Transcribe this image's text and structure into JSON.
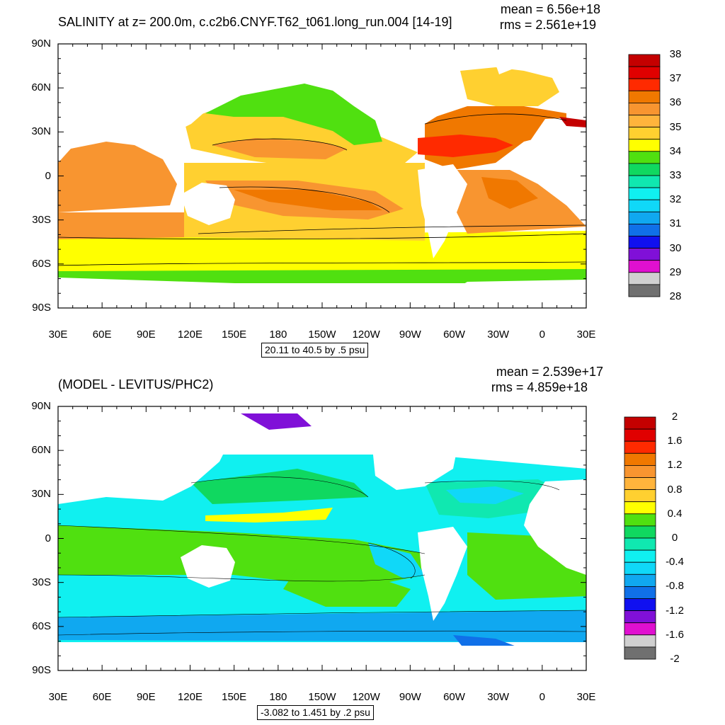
{
  "top": {
    "title": "SALINITY at z= 200.0m, c.c2b6.CNYF.T62_t061.long_run.004 [14-19]",
    "stat_mean": "mean = 6.56e+18",
    "stat_rms": "rms = 2.561e+19",
    "range_note": "20.11 to 40.5 by .5 psu",
    "x_ticks": [
      "30E",
      "60E",
      "90E",
      "120E",
      "150E",
      "180",
      "150W",
      "120W",
      "90W",
      "60W",
      "30W",
      "0",
      "30E"
    ],
    "y_ticks": [
      "90N",
      "60N",
      "30N",
      "0",
      "30S",
      "60S",
      "90S"
    ],
    "legend_labels": [
      "38",
      "37",
      "36",
      "35",
      "34",
      "33",
      "32",
      "31",
      "30",
      "29",
      "28"
    ],
    "legend_colors": [
      "#c40000",
      "#e00000",
      "#ff2a00",
      "#f07800",
      "#f89530",
      "#ffb43c",
      "#ffd030",
      "#ffff00",
      "#50e010",
      "#10d860",
      "#10e8b0",
      "#10f0f0",
      "#10d8f8",
      "#10a8f0",
      "#1070e8",
      "#1010f0",
      "#8010d8",
      "#e010d0",
      "#d0d0d0",
      "#707070"
    ]
  },
  "bottom": {
    "title": "(MODEL - LEVITUS/PHC2)",
    "stat_mean": "mean = 2.539e+17",
    "stat_rms": "rms = 4.859e+18",
    "range_note": "-3.082 to 1.451 by .2 psu",
    "x_ticks": [
      "30E",
      "60E",
      "90E",
      "120E",
      "150E",
      "180",
      "150W",
      "120W",
      "90W",
      "60W",
      "30W",
      "0",
      "30E"
    ],
    "y_ticks": [
      "90N",
      "60N",
      "30N",
      "0",
      "30S",
      "60S",
      "90S"
    ],
    "legend_labels": [
      "2",
      "1.6",
      "1.2",
      "0.8",
      "0.4",
      "0",
      "-0.4",
      "-0.8",
      "-1.2",
      "-1.6",
      "-2"
    ],
    "legend_colors": [
      "#c40000",
      "#e00000",
      "#ff2a00",
      "#f07800",
      "#f89530",
      "#ffb43c",
      "#ffd030",
      "#ffff00",
      "#50e010",
      "#10d860",
      "#10e8b0",
      "#10f0f0",
      "#10d8f8",
      "#10a8f0",
      "#1070e8",
      "#1010f0",
      "#8010d8",
      "#e010d0",
      "#d0d0d0",
      "#707070"
    ]
  },
  "chart_data": [
    {
      "type": "heatmap",
      "title": "SALINITY at z= 200.0m, c.c2b6.CNYF.T62_t061.long_run.004 [14-19]",
      "xlabel": "",
      "ylabel": "",
      "x_ticks": [
        "30E",
        "60E",
        "90E",
        "120E",
        "150E",
        "180",
        "150W",
        "120W",
        "90W",
        "60W",
        "30W",
        "0",
        "30E"
      ],
      "y_ticks": [
        "90N",
        "60N",
        "30N",
        "0",
        "30S",
        "60S",
        "90S"
      ],
      "colorbar_labels": [
        "38",
        "37",
        "36",
        "35",
        "34",
        "33",
        "32",
        "31",
        "30",
        "29",
        "28"
      ],
      "colorbar_levels": [
        38,
        37.5,
        37,
        36.5,
        36,
        35.5,
        35,
        34.5,
        34,
        33.5,
        33,
        32.5,
        32,
        31.5,
        31,
        30.5,
        30,
        29.5,
        29,
        28.5,
        28
      ],
      "annotations": [
        "mean = 6.56e+18",
        "rms = 2.561e+19",
        "20.11 to 40.5 by .5 psu"
      ]
    },
    {
      "type": "heatmap",
      "title": "(MODEL - LEVITUS/PHC2)",
      "xlabel": "",
      "ylabel": "",
      "x_ticks": [
        "30E",
        "60E",
        "90E",
        "120E",
        "150E",
        "180",
        "150W",
        "120W",
        "90W",
        "60W",
        "30W",
        "0",
        "30E"
      ],
      "y_ticks": [
        "90N",
        "60N",
        "30N",
        "0",
        "30S",
        "60S",
        "90S"
      ],
      "colorbar_labels": [
        "2",
        "1.6",
        "1.2",
        "0.8",
        "0.4",
        "0",
        "-0.4",
        "-0.8",
        "-1.2",
        "-1.6",
        "-2"
      ],
      "colorbar_levels": [
        2,
        1.8,
        1.6,
        1.4,
        1.2,
        1.0,
        0.8,
        0.6,
        0.4,
        0.2,
        0,
        -0.2,
        -0.4,
        -0.6,
        -0.8,
        -1.0,
        -1.2,
        -1.4,
        -1.6,
        -1.8,
        -2
      ],
      "annotations": [
        "mean = 2.539e+17",
        "rms = 4.859e+18",
        "-3.082 to 1.451 by .2 psu"
      ]
    }
  ]
}
